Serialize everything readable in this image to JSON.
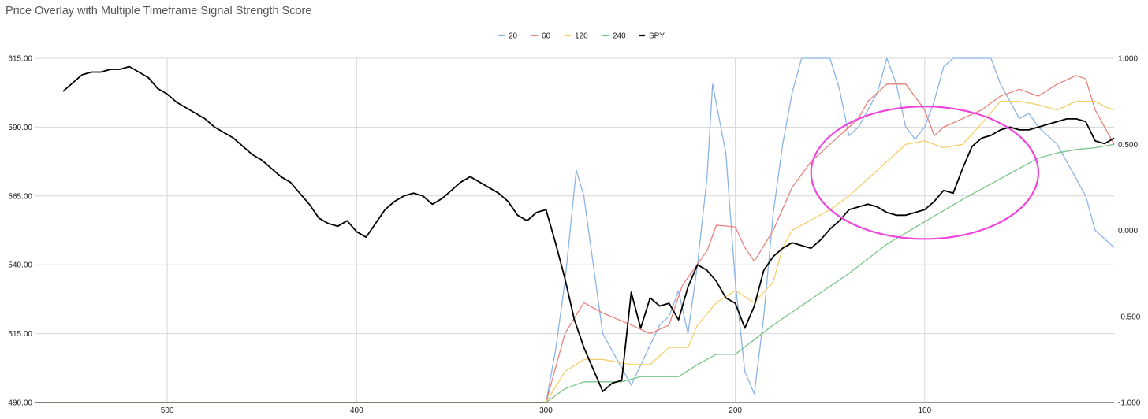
{
  "chart_data": {
    "type": "line",
    "title": "Price Overlay with Multiple Timeframe Signal Strength Score",
    "legend_position": "top-center",
    "grid": true,
    "x_axis": {
      "reversed": true,
      "ticks": [
        "500",
        "400",
        "300",
        "200",
        "100"
      ],
      "tick_values": [
        500,
        400,
        300,
        200,
        100
      ],
      "range": [
        570,
        0
      ]
    },
    "y_left": {
      "ticks": [
        "615.00",
        "590.00",
        "565.00",
        "540.00",
        "515.00",
        "490.00"
      ],
      "tick_values": [
        615,
        590,
        565,
        540,
        515,
        490
      ],
      "range": [
        490,
        615
      ]
    },
    "y_right": {
      "ticks": [
        "1.000",
        "0.500",
        "0.000",
        "-0.500",
        "-1.000"
      ],
      "tick_values": [
        1,
        0.5,
        0,
        -0.5,
        -1
      ],
      "range": [
        -1,
        1
      ]
    },
    "annotations": [
      {
        "type": "ellipse",
        "color": "#ee44dd",
        "x_range": [
          160,
          40
        ],
        "y_right_range": [
          -0.05,
          0.72
        ]
      }
    ],
    "series": [
      {
        "name": "20",
        "axis": "right",
        "color": "#8ab4e8",
        "x": [
          570,
          300,
          295,
          290,
          284,
          280,
          275,
          270,
          255,
          240,
          235,
          230,
          225,
          220,
          215,
          212,
          205,
          200,
          195,
          190,
          185,
          180,
          175,
          170,
          165,
          160,
          150,
          145,
          140,
          135,
          130,
          125,
          120,
          115,
          110,
          105,
          100,
          95,
          90,
          85,
          80,
          75,
          70,
          65,
          60,
          50,
          45,
          40,
          30,
          20,
          15,
          10,
          5,
          0
        ],
        "values": [
          -1,
          -1,
          -0.7,
          -0.3,
          0.35,
          0.2,
          -0.2,
          -0.6,
          -0.9,
          -0.55,
          -0.5,
          -0.35,
          -0.6,
          -0.2,
          0.3,
          0.85,
          0.45,
          -0.3,
          -0.82,
          -0.95,
          -0.5,
          0.1,
          0.5,
          0.8,
          1.0,
          1.0,
          1.0,
          0.82,
          0.55,
          0.6,
          0.7,
          0.8,
          1.0,
          0.85,
          0.6,
          0.53,
          0.6,
          0.75,
          0.95,
          1.0,
          1.0,
          1.0,
          1.0,
          1.0,
          0.85,
          0.65,
          0.68,
          0.6,
          0.5,
          0.3,
          0.2,
          0.0,
          -0.05,
          -0.1
        ]
      },
      {
        "name": "60",
        "axis": "right",
        "color": "#e8827a",
        "x": [
          570,
          300,
          290,
          280,
          270,
          255,
          245,
          235,
          228,
          215,
          210,
          200,
          195,
          190,
          180,
          170,
          160,
          150,
          140,
          135,
          130,
          120,
          115,
          110,
          100,
          95,
          90,
          80,
          70,
          60,
          55,
          50,
          40,
          30,
          20,
          15,
          10,
          5,
          0
        ],
        "values": [
          -1,
          -1,
          -0.6,
          -0.42,
          -0.48,
          -0.55,
          -0.6,
          -0.55,
          -0.32,
          -0.12,
          0.03,
          0.02,
          -0.1,
          -0.18,
          0.0,
          0.25,
          0.4,
          0.5,
          0.6,
          0.65,
          0.75,
          0.85,
          0.85,
          0.85,
          0.7,
          0.55,
          0.6,
          0.65,
          0.7,
          0.78,
          0.8,
          0.82,
          0.78,
          0.85,
          0.9,
          0.88,
          0.7,
          0.6,
          0.5
        ]
      },
      {
        "name": "120",
        "axis": "right",
        "color": "#f5cf6a",
        "x": [
          570,
          300,
          290,
          280,
          270,
          255,
          245,
          235,
          225,
          220,
          210,
          200,
          190,
          180,
          175,
          170,
          160,
          150,
          140,
          130,
          120,
          110,
          100,
          90,
          80,
          70,
          60,
          50,
          40,
          30,
          20,
          10,
          5,
          0
        ],
        "values": [
          -1,
          -1,
          -0.82,
          -0.75,
          -0.75,
          -0.78,
          -0.78,
          -0.68,
          -0.68,
          -0.55,
          -0.42,
          -0.35,
          -0.42,
          -0.3,
          -0.1,
          0.0,
          0.06,
          0.12,
          0.2,
          0.3,
          0.4,
          0.5,
          0.52,
          0.48,
          0.5,
          0.62,
          0.75,
          0.75,
          0.73,
          0.7,
          0.75,
          0.75,
          0.72,
          0.7
        ]
      },
      {
        "name": "240",
        "axis": "right",
        "color": "#7cc58a",
        "x": [
          570,
          300,
          290,
          280,
          270,
          260,
          250,
          240,
          230,
          220,
          210,
          200,
          180,
          160,
          140,
          120,
          100,
          80,
          60,
          40,
          30,
          20,
          10,
          0
        ],
        "values": [
          -1,
          -1,
          -0.92,
          -0.88,
          -0.88,
          -0.88,
          -0.85,
          -0.85,
          -0.85,
          -0.78,
          -0.72,
          -0.72,
          -0.55,
          -0.4,
          -0.25,
          -0.08,
          0.05,
          0.18,
          0.3,
          0.42,
          0.45,
          0.47,
          0.48,
          0.5
        ]
      },
      {
        "name": "SPY",
        "axis": "left",
        "color": "#000000",
        "x": [
          555,
          550,
          545,
          540,
          535,
          530,
          525,
          520,
          515,
          510,
          505,
          500,
          495,
          490,
          485,
          480,
          475,
          470,
          465,
          460,
          455,
          450,
          445,
          440,
          435,
          430,
          425,
          420,
          415,
          410,
          405,
          400,
          395,
          390,
          385,
          380,
          375,
          370,
          365,
          360,
          355,
          350,
          345,
          340,
          335,
          330,
          325,
          320,
          315,
          310,
          305,
          300,
          295,
          290,
          285,
          280,
          275,
          270,
          265,
          260,
          255,
          250,
          245,
          240,
          235,
          230,
          225,
          220,
          215,
          210,
          205,
          200,
          195,
          190,
          185,
          180,
          175,
          170,
          165,
          160,
          155,
          150,
          145,
          140,
          135,
          130,
          125,
          120,
          115,
          110,
          105,
          100,
          95,
          90,
          85,
          80,
          75,
          70,
          65,
          60,
          55,
          50,
          45,
          40,
          35,
          30,
          25,
          20,
          15,
          10,
          5,
          0
        ],
        "values": [
          603,
          606,
          609,
          610,
          610,
          611,
          611,
          612,
          610,
          608,
          604,
          602,
          599,
          597,
          595,
          593,
          590,
          588,
          586,
          583,
          580,
          578,
          575,
          572,
          570,
          566,
          562,
          557,
          555,
          554,
          556,
          552,
          550,
          555,
          560,
          563,
          565,
          566,
          565,
          562,
          564,
          567,
          570,
          572,
          570,
          568,
          566,
          563,
          558,
          556,
          559,
          560,
          548,
          535,
          520,
          510,
          502,
          494,
          497,
          498,
          530,
          517,
          528,
          525,
          526,
          520,
          532,
          540,
          538,
          534,
          528,
          526,
          517,
          525,
          538,
          543,
          546,
          548,
          547,
          546,
          549,
          553,
          556,
          560,
          561,
          562,
          561,
          559,
          558,
          558,
          559,
          560,
          563,
          567,
          566,
          575,
          583,
          586,
          587,
          589,
          590,
          589,
          589,
          590,
          591,
          592,
          593,
          593,
          592,
          585,
          584,
          586
        ]
      }
    ]
  }
}
